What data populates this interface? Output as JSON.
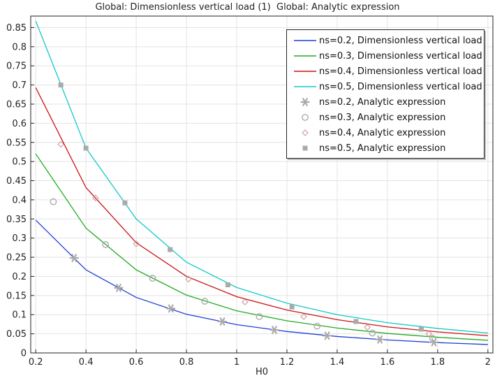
{
  "chart_data": {
    "type": "line",
    "title": "Global: Dimensionless vertical load (1)  Global: Analytic expression",
    "xlabel": "H0",
    "ylabel": "",
    "xlim": [
      0.18,
      2.02
    ],
    "ylim": [
      0,
      0.88
    ],
    "grid": true,
    "legend_position": "top-right",
    "x_ticks": [
      "0.2",
      "0.4",
      "0.6",
      "0.8",
      "1",
      "1.2",
      "1.4",
      "1.6",
      "1.8",
      "2"
    ],
    "y_ticks": [
      "0",
      "0.05",
      "0.1",
      "0.15",
      "0.2",
      "0.25",
      "0.3",
      "0.35",
      "0.4",
      "0.45",
      "0.5",
      "0.55",
      "0.6",
      "0.65",
      "0.7",
      "0.75",
      "0.8",
      "0.85"
    ],
    "series": [
      {
        "name": "ns=0.2, Dimensionless vertical load",
        "kind": "line",
        "color": "#1f3fd8",
        "x": [
          0.2,
          0.4,
          0.6,
          0.8,
          1.0,
          1.2,
          1.4,
          1.6,
          1.8,
          2.0
        ],
        "y": [
          0.347,
          0.217,
          0.145,
          0.101,
          0.074,
          0.056,
          0.043,
          0.034,
          0.027,
          0.022
        ]
      },
      {
        "name": "ns=0.3, Dimensionless vertical load",
        "kind": "line",
        "color": "#22aa22",
        "x": [
          0.2,
          0.4,
          0.6,
          0.8,
          1.0,
          1.2,
          1.4,
          1.6,
          1.8,
          2.0
        ],
        "y": [
          0.52,
          0.326,
          0.217,
          0.151,
          0.11,
          0.084,
          0.065,
          0.051,
          0.041,
          0.033
        ]
      },
      {
        "name": "ns=0.4, Dimensionless vertical load",
        "kind": "line",
        "color": "#cc1111",
        "x": [
          0.2,
          0.4,
          0.6,
          0.8,
          1.0,
          1.2,
          1.4,
          1.6,
          1.8,
          2.0
        ],
        "y": [
          0.693,
          0.432,
          0.288,
          0.2,
          0.147,
          0.112,
          0.087,
          0.068,
          0.055,
          0.045
        ]
      },
      {
        "name": "ns=0.5, Dimensionless vertical load",
        "kind": "line",
        "color": "#11c8c8",
        "x": [
          0.2,
          0.4,
          0.6,
          0.8,
          1.0,
          1.2,
          1.4,
          1.6,
          1.8,
          2.0
        ],
        "y": [
          0.867,
          0.535,
          0.35,
          0.237,
          0.171,
          0.13,
          0.1,
          0.079,
          0.064,
          0.052
        ]
      },
      {
        "name": "ns=0.2, Analytic expression",
        "kind": "marker",
        "marker": "asterisk",
        "color": "#aaaaaa",
        "x": [
          0.353,
          0.53,
          0.738,
          0.943,
          1.15,
          1.36,
          1.57,
          1.785
        ],
        "y": [
          0.248,
          0.17,
          0.116,
          0.082,
          0.06,
          0.045,
          0.035,
          0.028
        ]
      },
      {
        "name": "ns=0.3, Analytic expression",
        "kind": "marker",
        "marker": "circle",
        "color": "#aaaaaa",
        "x": [
          0.27,
          0.478,
          0.665,
          0.873,
          1.09,
          1.32,
          1.54,
          1.78
        ],
        "y": [
          0.395,
          0.283,
          0.195,
          0.135,
          0.095,
          0.07,
          0.052,
          0.038
        ]
      },
      {
        "name": "ns=0.4, Analytic expression",
        "kind": "marker",
        "marker": "diamond",
        "color": "#cc9a9a",
        "x": [
          0.3,
          0.438,
          0.6,
          0.808,
          1.033,
          1.267,
          1.52,
          1.765
        ],
        "y": [
          0.545,
          0.405,
          0.285,
          0.193,
          0.133,
          0.095,
          0.067,
          0.05
        ]
      },
      {
        "name": "ns=0.5, Analytic expression",
        "kind": "marker",
        "marker": "square",
        "color": "#aaaaaa",
        "x": [
          0.3,
          0.4,
          0.555,
          0.735,
          0.965,
          1.22,
          1.475,
          1.735
        ],
        "y": [
          0.7,
          0.535,
          0.392,
          0.27,
          0.178,
          0.12,
          0.082,
          0.062
        ]
      }
    ]
  }
}
